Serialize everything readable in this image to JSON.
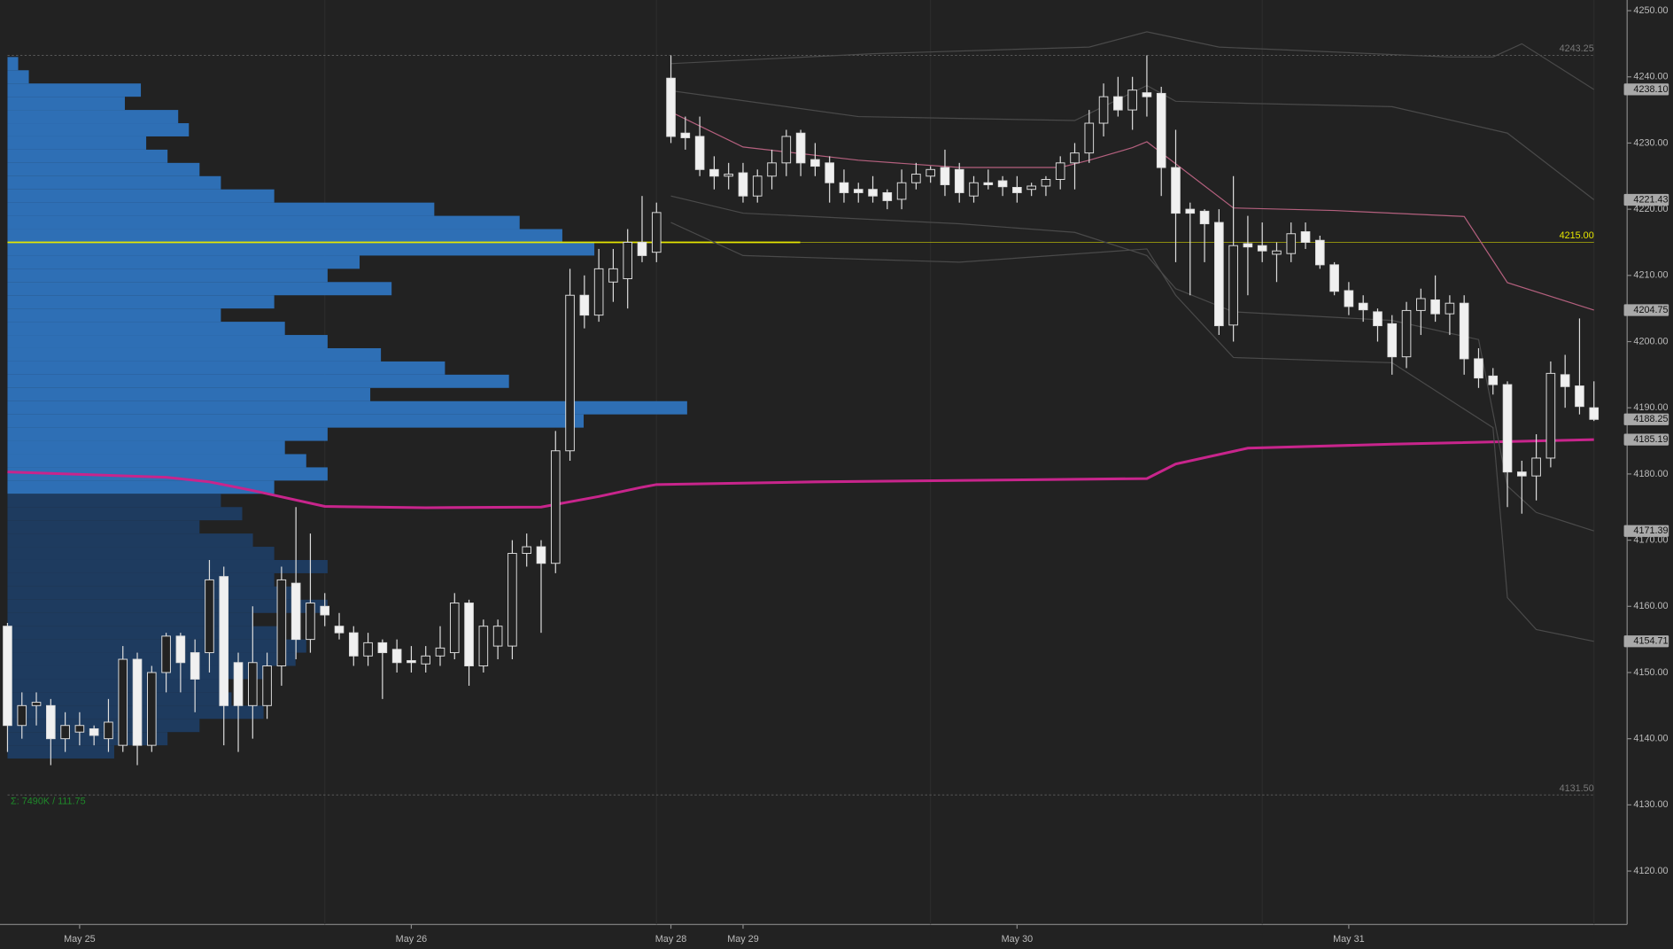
{
  "chart_data": {
    "type": "candlestick",
    "xlim": [
      -0.52,
      112.3
    ],
    "ylim": [
      4111.935,
      4251.613
    ],
    "xticks": [
      {
        "value": 5,
        "label": "May 25"
      },
      {
        "value": 28,
        "label": "May 26"
      },
      {
        "value": 46,
        "label": "May 28"
      },
      {
        "value": 51,
        "label": "May 29"
      },
      {
        "value": 70,
        "label": "May 30"
      },
      {
        "value": 93,
        "label": "May 31"
      }
    ],
    "yticks": [
      {
        "value": 4250,
        "label": "4250.00"
      },
      {
        "value": 4240,
        "label": "4240.00"
      },
      {
        "value": 4230,
        "label": "4230.00"
      },
      {
        "value": 4220,
        "label": "4220.00"
      },
      {
        "value": 4210,
        "label": "4210.00"
      },
      {
        "value": 4200,
        "label": "4200.00"
      },
      {
        "value": 4190,
        "label": "4190.00"
      },
      {
        "value": 4180,
        "label": "4180.00"
      },
      {
        "value": 4170,
        "label": "4170.00"
      },
      {
        "value": 4160,
        "label": "4160.00"
      },
      {
        "value": 4150,
        "label": "4150.00"
      },
      {
        "value": 4140,
        "label": "4140.00"
      },
      {
        "value": 4130,
        "label": "4130.00"
      },
      {
        "value": 4120,
        "label": "4120.00"
      }
    ],
    "session_breaks": [
      22,
      45,
      64,
      87,
      110
    ],
    "open": [
      4157,
      4142,
      4145,
      4145,
      4140,
      4141,
      4141.5,
      4140,
      4139,
      4152,
      4139,
      4150,
      4155.5,
      4153,
      4153,
      4164.5,
      4151.5,
      4145,
      4145,
      4151,
      4163.5,
      4155,
      4160,
      4157,
      4156,
      4152.5,
      4154.5,
      4153.5,
      4151.8,
      4151.3,
      4152.5,
      4153,
      4160.5,
      4151,
      4154,
      4154,
      4168,
      4169,
      4166.5,
      4183.5,
      4207,
      4204,
      4209,
      4209.5,
      4215,
      4213.5,
      4239.8,
      4231.5,
      4231,
      4226,
      4225,
      4225.5,
      4222,
      4225,
      4227,
      4231.5,
      4227.5,
      4227,
      4224,
      4223,
      4223,
      4222.5,
      4221.5,
      4224,
      4225,
      4226.3,
      4226,
      4222,
      4224,
      4224.3,
      4223.3,
      4223,
      4223.5,
      4224.5,
      4227,
      4228.5,
      4233,
      4237,
      4235,
      4237.6,
      4237.5,
      4226.3,
      4220,
      4219.7,
      4218,
      4202.5,
      4214.8,
      4214.5,
      4213.2,
      4213.3,
      4216.6,
      4215.3,
      4211.6,
      4207.7,
      4205.8,
      4204.5,
      4202.7,
      4197.7,
      4204.7,
      4206.3,
      4204.2,
      4205.8,
      4197.4,
      4194.8,
      4193.5,
      4180.3,
      4179.7,
      4182.4,
      4195,
      4193.3,
      4190
    ],
    "high": [
      4157.5,
      4147,
      4147,
      4146,
      4144,
      4144,
      4142,
      4146,
      4154,
      4153,
      4151,
      4156,
      4156,
      4155,
      4167,
      4166,
      4153,
      4160,
      4153,
      4166,
      4175,
      4171,
      4162,
      4159,
      4157,
      4156,
      4155,
      4155,
      4154,
      4154,
      4157,
      4162,
      4161,
      4158,
      4158,
      4170,
      4171,
      4170,
      4186.5,
      4211,
      4210,
      4214,
      4214,
      4217,
      4222,
      4221,
      4243.25,
      4234,
      4234,
      4228,
      4227,
      4227,
      4226,
      4229,
      4232,
      4232,
      4230,
      4228,
      4226,
      4224,
      4225,
      4223,
      4226,
      4227,
      4226.5,
      4229,
      4227,
      4225,
      4226,
      4225,
      4225,
      4224,
      4225,
      4228,
      4230,
      4235,
      4239,
      4240,
      4240,
      4243.25,
      4238.5,
      4232,
      4221,
      4220,
      4220,
      4225,
      4219,
      4218,
      4215,
      4218,
      4218,
      4216,
      4212,
      4209,
      4207,
      4205,
      4204,
      4206,
      4208,
      4210,
      4207,
      4207,
      4199,
      4196,
      4194,
      4182,
      4186,
      4197,
      4198,
      4203.5,
      4194
    ],
    "low": [
      4138,
      4140,
      4142,
      4136,
      4138,
      4139,
      4139,
      4138,
      4138,
      4136,
      4138,
      4147,
      4147,
      4144,
      4150,
      4139,
      4138,
      4140,
      4143,
      4148,
      4152,
      4153,
      4157,
      4155,
      4151,
      4151,
      4146,
      4150,
      4150,
      4150,
      4151,
      4152,
      4148,
      4150,
      4152,
      4152,
      4166,
      4156,
      4165,
      4182,
      4202,
      4203,
      4206,
      4205,
      4212,
      4212,
      4230,
      4229,
      4225,
      4223,
      4223,
      4221,
      4221,
      4223,
      4225,
      4225,
      4225,
      4221,
      4221,
      4221,
      4221,
      4220,
      4220,
      4223,
      4224,
      4222,
      4221,
      4221,
      4223,
      4222,
      4221,
      4222,
      4222,
      4223,
      4223,
      4227,
      4231,
      4234,
      4232,
      4234,
      4222,
      4212,
      4207,
      4212,
      4201,
      4200,
      4207,
      4212,
      4209,
      4212,
      4214,
      4211,
      4207,
      4204,
      4203,
      4200,
      4195,
      4196,
      4201,
      4203,
      4201,
      4195,
      4193,
      4192,
      4175,
      4174,
      4176,
      4181,
      4190,
      4189,
      4188
    ],
    "close": [
      4142,
      4145,
      4145.5,
      4140,
      4142,
      4142,
      4140.5,
      4142.5,
      4152,
      4139,
      4150,
      4155.5,
      4151.5,
      4149,
      4164,
      4145,
      4145,
      4151.5,
      4151,
      4164,
      4155,
      4160.5,
      4158.7,
      4156,
      4152.5,
      4154.5,
      4153,
      4151.5,
      4151.5,
      4152.5,
      4153.7,
      4160.5,
      4151,
      4157,
      4157,
      4168,
      4169,
      4166.5,
      4183.5,
      4207,
      4204,
      4211,
      4211,
      4215,
      4213,
      4219.5,
      4231,
      4230.8,
      4226,
      4225,
      4225.3,
      4222,
      4225,
      4227,
      4231,
      4227,
      4226.5,
      4224,
      4222.5,
      4222.5,
      4222,
      4221.3,
      4224,
      4225.3,
      4226,
      4223.7,
      4222.5,
      4224,
      4223.7,
      4223.4,
      4222.5,
      4223.5,
      4224.5,
      4227,
      4228.5,
      4233,
      4237,
      4235,
      4238,
      4237,
      4226.3,
      4219.4,
      4219.4,
      4217.8,
      4202.4,
      4214.5,
      4214.3,
      4213.7,
      4213.7,
      4216.3,
      4215,
      4211.6,
      4207.6,
      4205.3,
      4204.8,
      4202.4,
      4197.7,
      4204.7,
      4206.5,
      4204.2,
      4205.8,
      4197.4,
      4194.5,
      4193.5,
      4180.3,
      4179.7,
      4182.4,
      4195.2,
      4193.2,
      4190.2,
      4188.25
    ],
    "up_color": "#222222",
    "down_color": "#f0f0f0",
    "candle_stroke": "#dddddd",
    "lines": [
      {
        "color": "#c8258c",
        "width": 2.5,
        "x": [
          0,
          11,
          14,
          17,
          22,
          29,
          37,
          41,
          44,
          45,
          56,
          79,
          81,
          86,
          96,
          110
        ],
        "values": [
          4180.3,
          4179.5,
          4178.8,
          4177.5,
          4175.1,
          4174.9,
          4175,
          4176.6,
          4178,
          4178.4,
          4178.8,
          4179.3,
          4181.5,
          4183.9,
          4184.5,
          4185.19
        ]
      },
      {
        "color": "#b4607e",
        "width": 1,
        "x": [
          46,
          51,
          59,
          66,
          73,
          75,
          78,
          79,
          85,
          92,
          101,
          104,
          110
        ],
        "values": [
          4234.7,
          4229.4,
          4227.4,
          4226.3,
          4226.3,
          4227.4,
          4229.3,
          4230.2,
          4220.2,
          4219.8,
          4218.9,
          4208.9,
          4204.75
        ]
      },
      {
        "color": "#4a4a4a",
        "width": 1,
        "x": [
          46,
          60,
          75,
          79,
          84,
          100,
          103,
          105,
          110
        ],
        "values": [
          4242,
          4243.5,
          4244.5,
          4246.8,
          4244.5,
          4243,
          4243,
          4245,
          4238.1
        ]
      },
      {
        "color": "#4a4a4a",
        "width": 1,
        "x": [
          46,
          59,
          74,
          79,
          81,
          86,
          96,
          104,
          110
        ],
        "values": [
          4237.9,
          4234,
          4233.4,
          4238.7,
          4236.3,
          4236,
          4235.5,
          4231.5,
          4221.43
        ]
      },
      {
        "color": "#4a4a4a",
        "width": 1,
        "x": [
          46,
          51,
          66,
          74,
          79,
          81,
          85,
          96,
          102,
          104,
          106,
          110
        ],
        "values": [
          4222,
          4219.4,
          4217.8,
          4216.5,
          4213,
          4208,
          4204.5,
          4203.2,
          4200.3,
          4178.2,
          4174.2,
          4171.39
        ]
      },
      {
        "color": "#4a4a4a",
        "width": 1,
        "x": [
          46,
          51,
          66,
          79,
          81,
          85,
          96,
          103,
          104,
          106,
          110
        ],
        "values": [
          4218,
          4213,
          4212,
          4214,
          4207,
          4197.6,
          4196.8,
          4187,
          4161.3,
          4156.5,
          4154.71
        ]
      }
    ],
    "levels": [
      {
        "value": 4243.25,
        "label": "4243.25",
        "color": "#6a6a6a",
        "dash": true
      },
      {
        "value": 4215,
        "label": "4215.00",
        "color": "#e6e600",
        "dash": false
      },
      {
        "value": 4131.5,
        "label": "4131.50",
        "color": "#6a6a6a",
        "dash": true
      }
    ],
    "badges": [
      {
        "value": 4238.1,
        "label": "4238.10"
      },
      {
        "value": 4221.43,
        "label": "4221.43"
      },
      {
        "value": 4204.75,
        "label": "4204.75"
      },
      {
        "value": 4188.25,
        "label": "4188.25"
      },
      {
        "value": 4185.19,
        "label": "4185.19"
      },
      {
        "value": 4171.39,
        "label": "4171.39"
      },
      {
        "value": 4154.71,
        "label": "4154.71"
      }
    ],
    "profile": {
      "bin": 2,
      "xlim": [
        0,
        1500
      ],
      "value_area_low": 4177,
      "value_area_color": "#2e6fb5",
      "outer_color": "#1e3b5f",
      "prices": [
        4242,
        4240,
        4238,
        4236,
        4234,
        4232,
        4230,
        4228,
        4226,
        4224,
        4222,
        4220,
        4218,
        4216,
        4214,
        4212,
        4210,
        4208,
        4206,
        4204,
        4202,
        4200,
        4198,
        4196,
        4194,
        4192,
        4190,
        4188,
        4186,
        4184,
        4182,
        4180,
        4178,
        4176,
        4174,
        4172,
        4170,
        4168,
        4166,
        4164,
        4162,
        4160,
        4158,
        4156,
        4154,
        4152,
        4150,
        4148,
        4146,
        4144,
        4142,
        4140,
        4138
      ],
      "values": [
        10,
        20,
        125,
        110,
        160,
        170,
        130,
        150,
        180,
        200,
        250,
        400,
        480,
        520,
        550,
        330,
        300,
        360,
        250,
        200,
        260,
        300,
        350,
        410,
        470,
        340,
        637,
        540,
        300,
        260,
        280,
        300,
        250,
        200,
        220,
        180,
        230,
        250,
        300,
        250,
        270,
        300,
        230,
        260,
        280,
        270,
        240,
        200,
        210,
        240,
        180,
        150,
        100
      ],
      "note_text": "Σ: 7490K / 111.75"
    }
  }
}
